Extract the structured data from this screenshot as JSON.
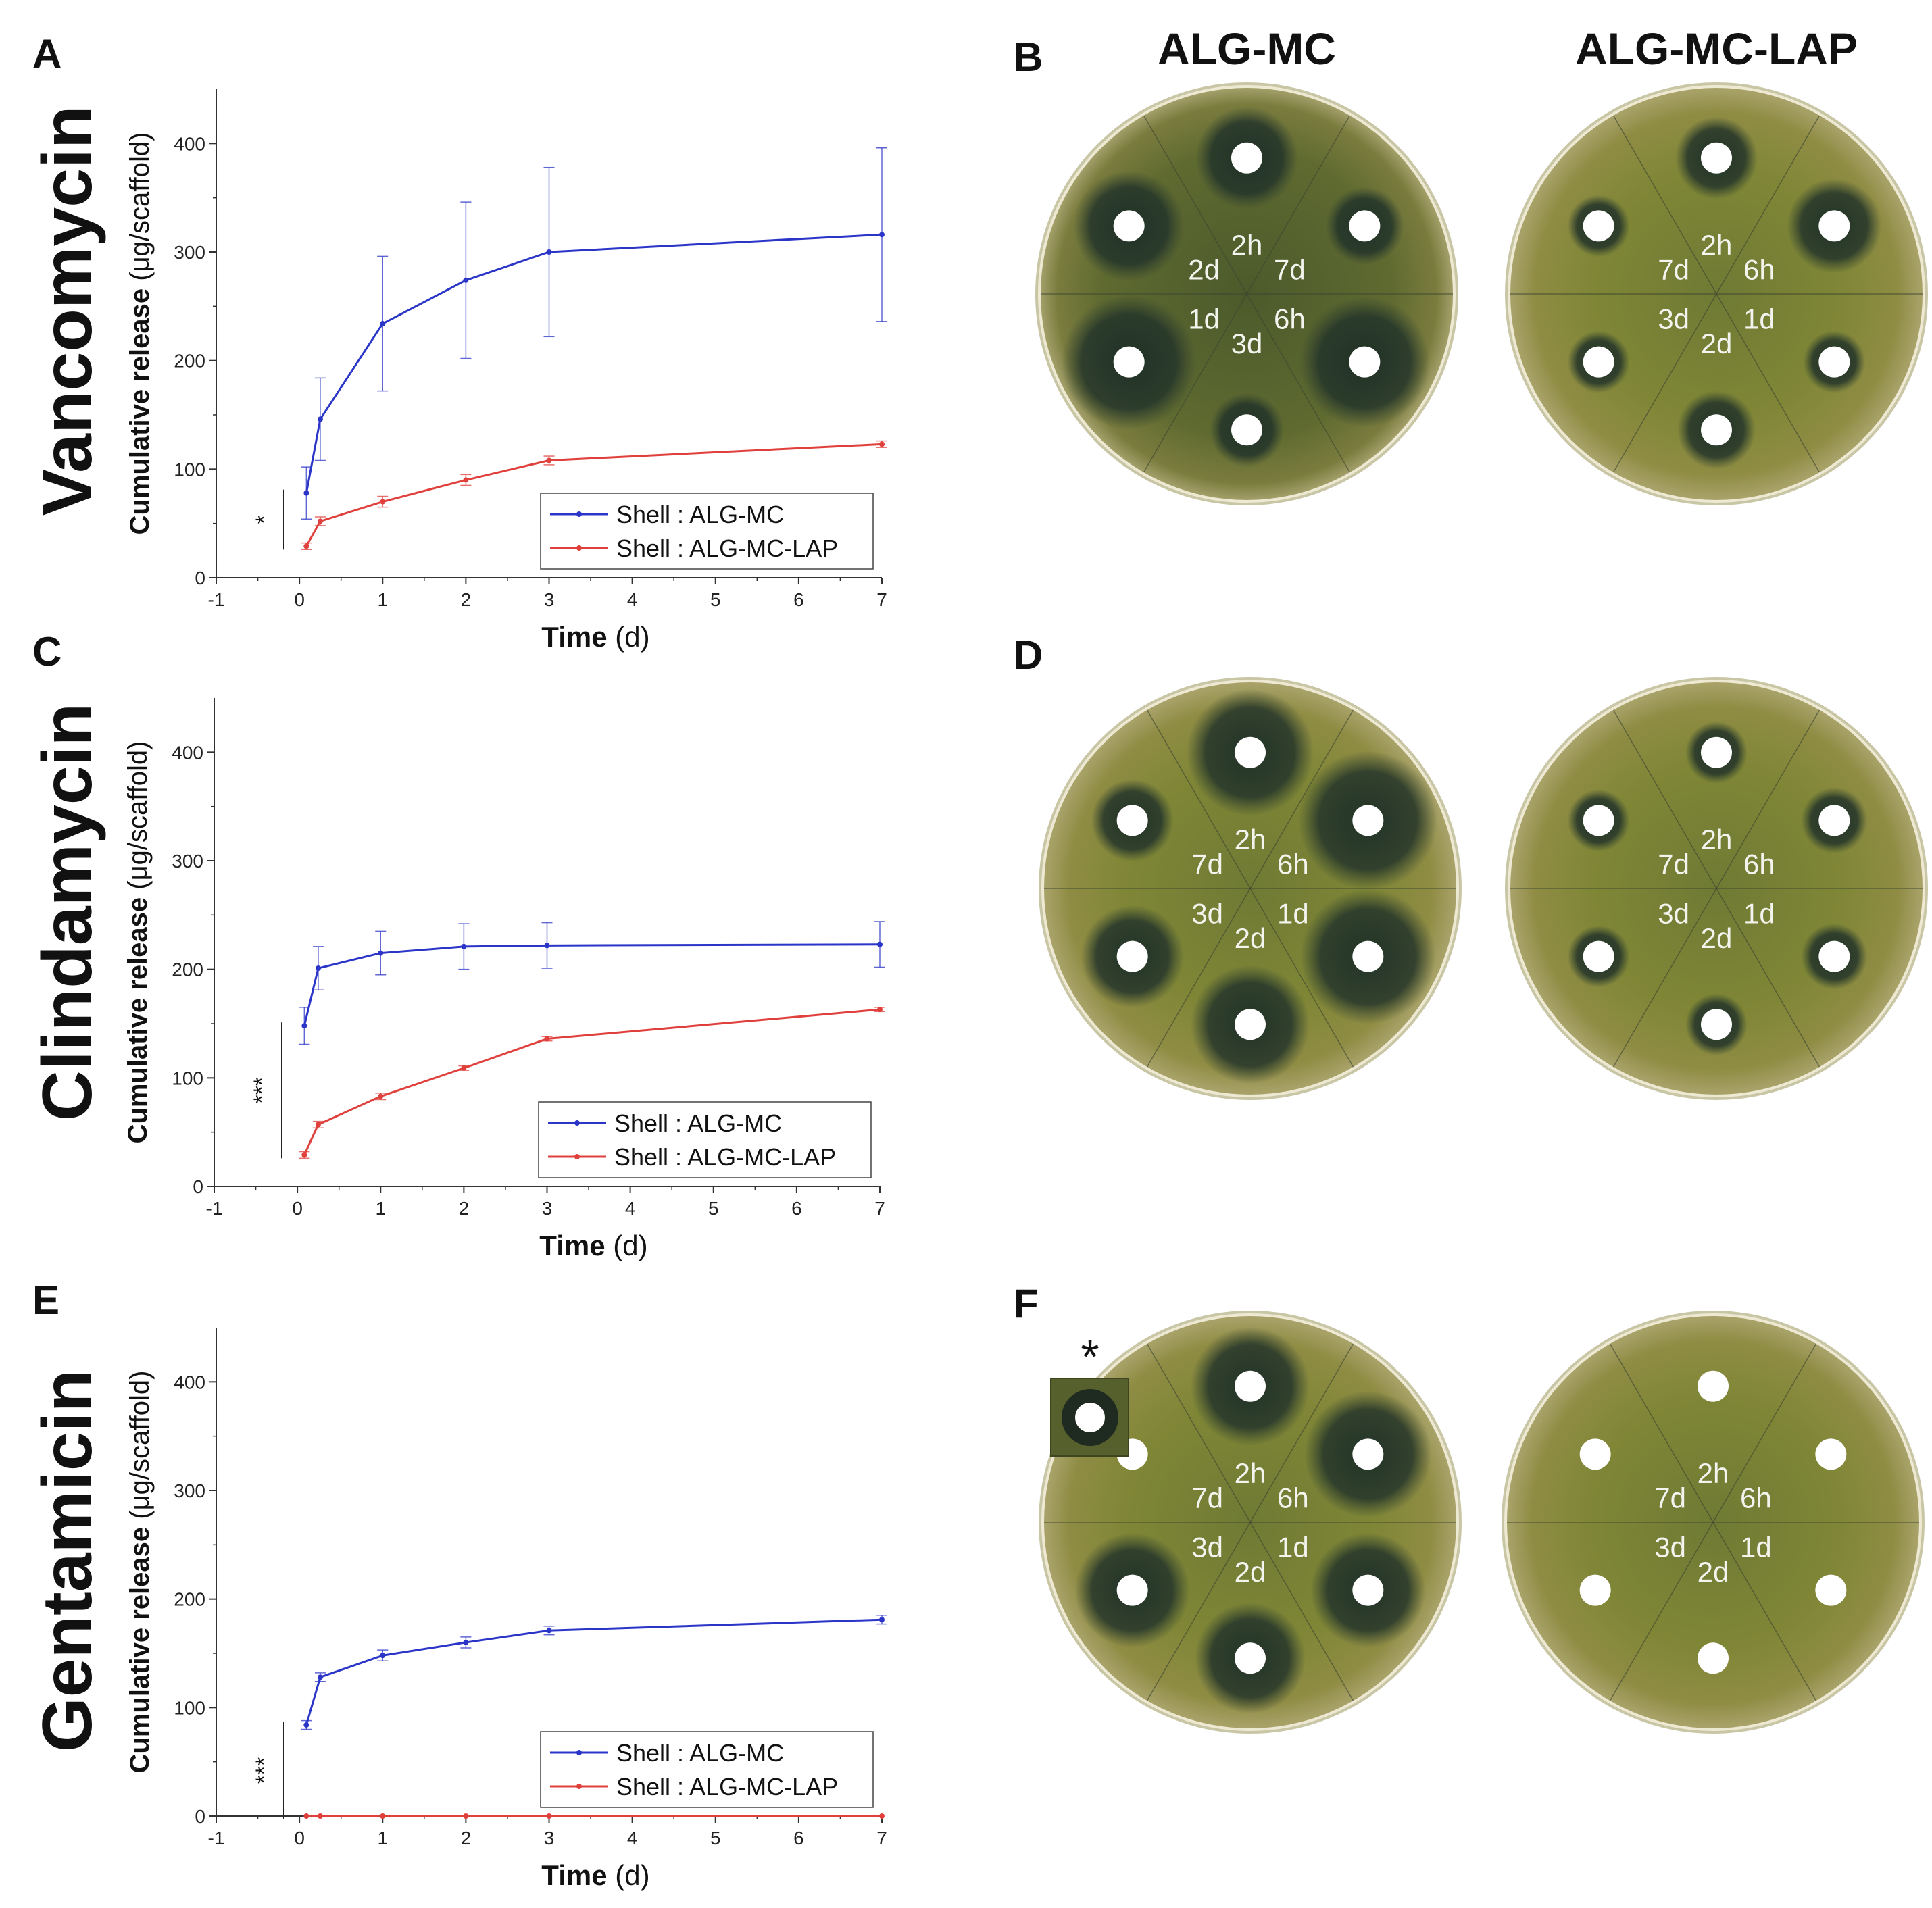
{
  "columns": {
    "left": "ALG-MC",
    "right": "ALG-MC-LAP"
  },
  "panel_letters": {
    "A": "A",
    "B": "B",
    "C": "C",
    "D": "D",
    "E": "E",
    "F": "F"
  },
  "drugs": [
    "Vancomycin",
    "Clindamycin",
    "Gentamicin"
  ],
  "colors": {
    "alg_mc": "#2b35c8",
    "alg_mc_lap": "#e0403c",
    "agar": "#8a8a40",
    "plate_edge": "#c9c6a6"
  },
  "chart_data": [
    {
      "type": "line",
      "panel": "A",
      "drug": "Vancomycin",
      "xlabel_bold": "Time",
      "xlabel_unit": "(d)",
      "ylabel_bold": "Cumulative release",
      "ylabel_unit": "(μg/scaffold)",
      "xlim": [
        -1,
        7
      ],
      "ylim": [
        0,
        450
      ],
      "xticks": [
        -1,
        0,
        1,
        2,
        3,
        4,
        5,
        6,
        7
      ],
      "yticks": [
        0,
        100,
        200,
        300,
        400
      ],
      "x": [
        0.083,
        0.25,
        1,
        2,
        3,
        7
      ],
      "significance": "*",
      "series": [
        {
          "name": "Shell : ALG-MC",
          "values": [
            78,
            146,
            234,
            274,
            300,
            316
          ],
          "errors": [
            24,
            38,
            62,
            72,
            78,
            80
          ]
        },
        {
          "name": "Shell : ALG-MC-LAP",
          "values": [
            29,
            52,
            70,
            90,
            108,
            123
          ],
          "errors": [
            3,
            4,
            5,
            5,
            4,
            3
          ]
        }
      ]
    },
    {
      "type": "line",
      "panel": "C",
      "drug": "Clindamycin",
      "xlabel_bold": "Time",
      "xlabel_unit": "(d)",
      "ylabel_bold": "Cumulative release",
      "ylabel_unit": "(μg/scaffold)",
      "xlim": [
        -1,
        7
      ],
      "ylim": [
        0,
        450
      ],
      "xticks": [
        -1,
        0,
        1,
        2,
        3,
        4,
        5,
        6,
        7
      ],
      "yticks": [
        0,
        100,
        200,
        300,
        400
      ],
      "x": [
        0.083,
        0.25,
        1,
        2,
        3,
        7
      ],
      "significance": "***",
      "series": [
        {
          "name": "Shell : ALG-MC",
          "values": [
            148,
            201,
            215,
            221,
            222,
            223
          ],
          "errors": [
            17,
            20,
            20,
            21,
            21,
            21
          ]
        },
        {
          "name": "Shell : ALG-MC-LAP",
          "values": [
            29,
            57,
            83,
            109,
            136,
            163
          ],
          "errors": [
            3,
            3,
            3,
            2,
            2,
            2
          ]
        }
      ]
    },
    {
      "type": "line",
      "panel": "E",
      "drug": "Gentamicin",
      "xlabel_bold": "Time",
      "xlabel_unit": "(d)",
      "ylabel_bold": "Cumulative release",
      "ylabel_unit": "(μg/scaffold)",
      "xlim": [
        -1,
        7
      ],
      "ylim": [
        0,
        450
      ],
      "xticks": [
        -1,
        0,
        1,
        2,
        3,
        4,
        5,
        6,
        7
      ],
      "yticks": [
        0,
        100,
        200,
        300,
        400
      ],
      "x": [
        0.083,
        0.25,
        1,
        2,
        3,
        7
      ],
      "significance": "***",
      "series": [
        {
          "name": "Shell : ALG-MC",
          "values": [
            84,
            128,
            148,
            160,
            171,
            181
          ],
          "errors": [
            4,
            4,
            5,
            5,
            4,
            4
          ]
        },
        {
          "name": "Shell : ALG-MC-LAP",
          "values": [
            0,
            0,
            0,
            0,
            0,
            0
          ],
          "errors": [
            0,
            0,
            0,
            0,
            0,
            0
          ]
        }
      ]
    }
  ],
  "plates": [
    {
      "panel": "B",
      "drug": "Vancomycin",
      "left": {
        "labels": [
          "2h",
          "7d",
          "6h",
          "3d",
          "1d",
          "2d"
        ],
        "zones": [
          0.55,
          0.25,
          0.9,
          0.2,
          0.95,
          0.65
        ]
      },
      "right": {
        "labels": [
          "2h",
          "6h",
          "1d",
          "2d",
          "3d",
          "7d"
        ],
        "zones": [
          0.3,
          0.45,
          0.05,
          0.25,
          0.05,
          0.05
        ]
      }
    },
    {
      "panel": "D",
      "drug": "Clindamycin",
      "left": {
        "labels": [
          "2h",
          "6h",
          "1d",
          "2d",
          "3d",
          "7d"
        ],
        "zones": [
          0.85,
          1.0,
          0.95,
          0.75,
          0.55,
          0.3
        ]
      },
      "right": {
        "labels": [
          "2h",
          "6h",
          "1d",
          "2d",
          "3d",
          "7d"
        ],
        "zones": [
          0.05,
          0.1,
          0.1,
          0.05,
          0.05,
          0.05
        ]
      }
    },
    {
      "panel": "F",
      "drug": "Gentamicin",
      "left": {
        "labels": [
          "2h",
          "6h",
          "1d",
          "2d",
          "3d",
          "7d"
        ],
        "zones": [
          0.75,
          0.85,
          0.7,
          0.65,
          0.7,
          0.0
        ]
      },
      "right": {
        "labels": [
          "2h",
          "6h",
          "1d",
          "2d",
          "3d",
          "7d"
        ],
        "zones": [
          0,
          0,
          0,
          0,
          0,
          0
        ]
      },
      "inset_mark": "*"
    }
  ]
}
